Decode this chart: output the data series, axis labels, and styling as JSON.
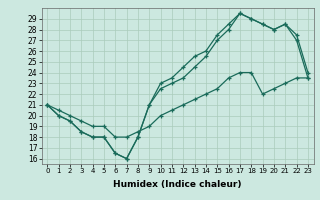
{
  "title": "",
  "xlabel": "Humidex (Indice chaleur)",
  "bg_color": "#cce8e0",
  "grid_color": "#aaccbb",
  "line_color": "#1a6b5a",
  "xlim": [
    -0.5,
    23.5
  ],
  "ylim": [
    15.5,
    30
  ],
  "yticks": [
    16,
    17,
    18,
    19,
    20,
    21,
    22,
    23,
    24,
    25,
    26,
    27,
    28,
    29
  ],
  "xticks": [
    0,
    1,
    2,
    3,
    4,
    5,
    6,
    7,
    8,
    9,
    10,
    11,
    12,
    13,
    14,
    15,
    16,
    17,
    18,
    19,
    20,
    21,
    22,
    23
  ],
  "line1_y": [
    21,
    20,
    19.5,
    18.5,
    18,
    18,
    16.5,
    16,
    18,
    21,
    23,
    23.5,
    24.5,
    25.5,
    26,
    27.5,
    28.5,
    29.5,
    29,
    28.5,
    28,
    28.5,
    27,
    23.5
  ],
  "line2_y": [
    21,
    20,
    19.5,
    18.5,
    18,
    18,
    16.5,
    16,
    18,
    21,
    22.5,
    23,
    23.5,
    24.5,
    25.5,
    27,
    28,
    29.5,
    29,
    28.5,
    28,
    28.5,
    27.5,
    24
  ],
  "line3_y": [
    21,
    20.5,
    20,
    19.5,
    19,
    19,
    18,
    18,
    18.5,
    19,
    20,
    20.5,
    21,
    21.5,
    22,
    22.5,
    23.5,
    24,
    24,
    22,
    22.5,
    23,
    23.5,
    23.5
  ]
}
